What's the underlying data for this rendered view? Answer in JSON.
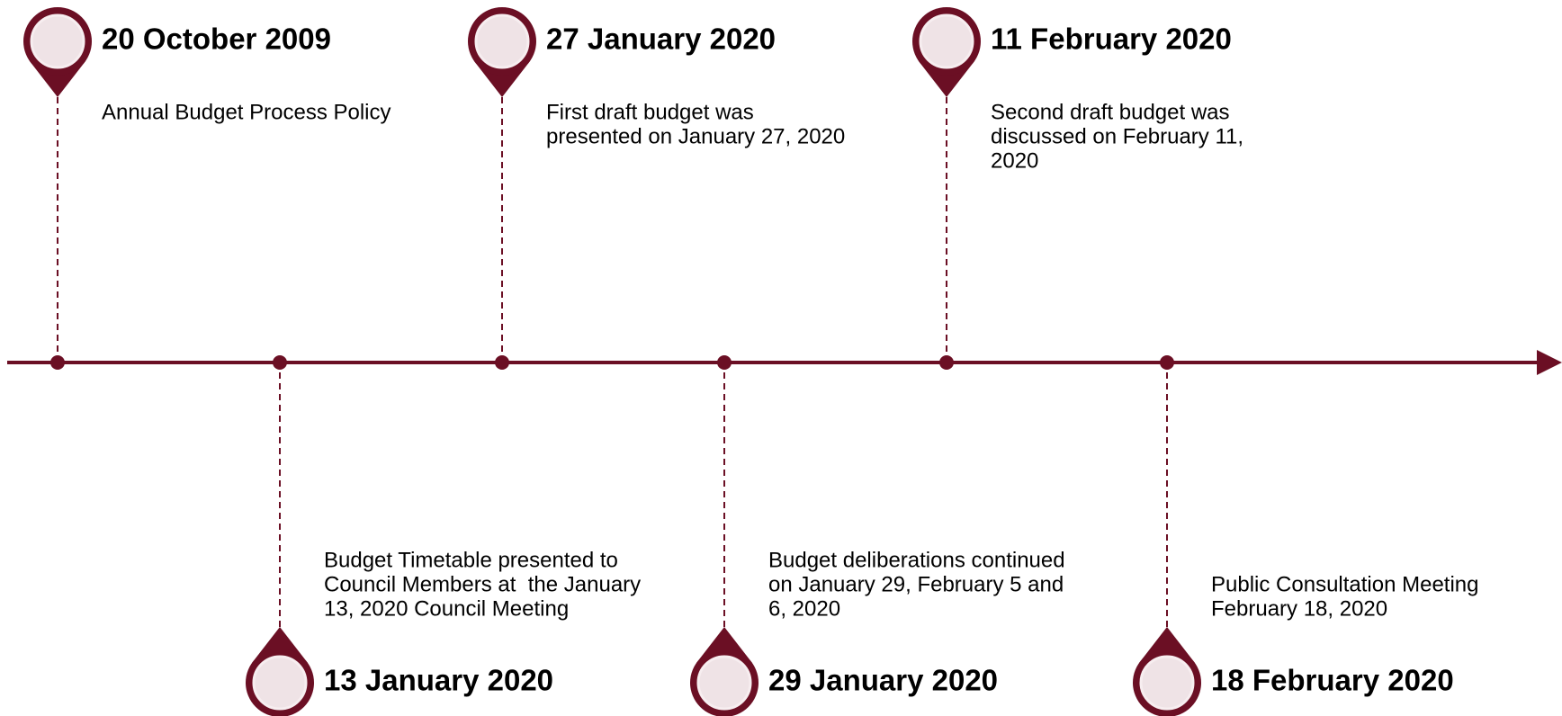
{
  "timeline": {
    "events": [
      {
        "date": "20 October 2009",
        "lines": [
          "Annual Budget Process Policy"
        ],
        "position": "top"
      },
      {
        "date": "13 January 2020",
        "lines": [
          "Budget Timetable presented to",
          "Council Members at  the January",
          "13, 2020 Council Meeting"
        ],
        "position": "bottom"
      },
      {
        "date": "27 January 2020",
        "lines": [
          "First draft budget was",
          "presented on January 27, 2020"
        ],
        "position": "top"
      },
      {
        "date": "29 January 2020",
        "lines": [
          "Budget deliberations continued",
          "on January 29, February 5 and",
          "6, 2020"
        ],
        "position": "bottom"
      },
      {
        "date": "11 February 2020",
        "lines": [
          "Second draft budget was",
          "discussed on February 11,",
          "2020"
        ],
        "position": "top"
      },
      {
        "date": "18 February 2020",
        "lines": [
          "Public Consultation Meeting",
          "February 18, 2020"
        ],
        "position": "bottom"
      }
    ],
    "color": "#6b0f24",
    "pin_fill": "#efe3e6"
  }
}
